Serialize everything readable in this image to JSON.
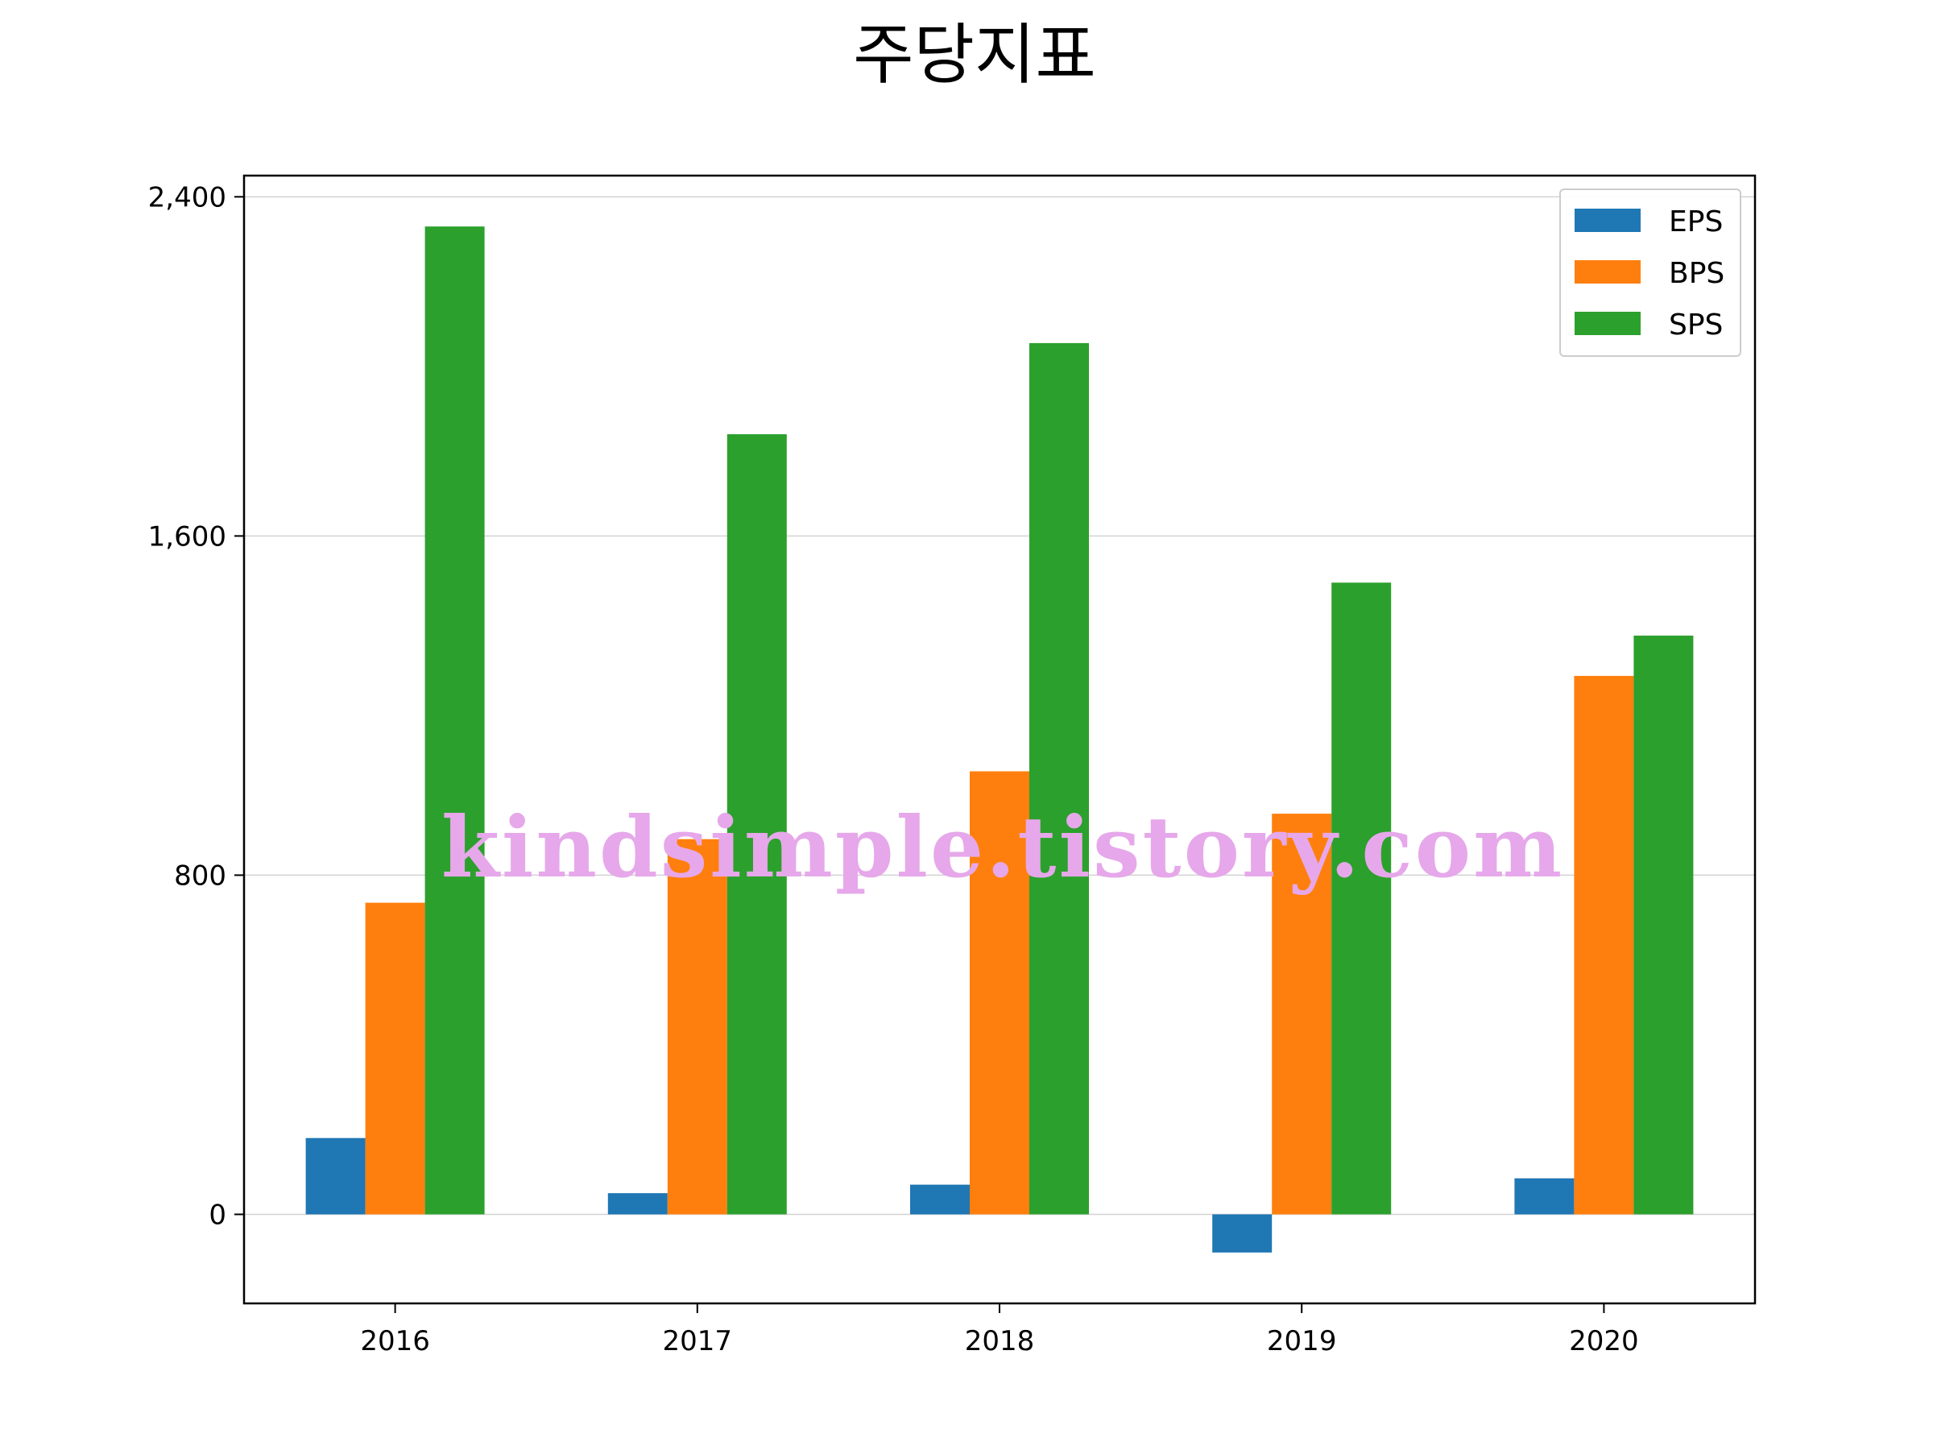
{
  "chart_data": {
    "type": "bar",
    "title": "주당지표",
    "xlabel": "",
    "ylabel": "",
    "categories": [
      "2016",
      "2017",
      "2018",
      "2019",
      "2020"
    ],
    "series": [
      {
        "name": "EPS",
        "color": "#1f77b4",
        "values": [
          180,
          50,
          70,
          -90,
          85
        ]
      },
      {
        "name": "BPS",
        "color": "#ff7f0e",
        "values": [
          735,
          885,
          1045,
          945,
          1270
        ]
      },
      {
        "name": "SPS",
        "color": "#2ca02c",
        "values": [
          2330,
          1840,
          2055,
          1490,
          1365
        ]
      }
    ],
    "ylim": [
      -210,
      2450
    ],
    "yticks": [
      0,
      800,
      1600,
      2400
    ],
    "ytick_labels": [
      "0",
      "800",
      "1,600",
      "2,400"
    ],
    "grid": {
      "y": true,
      "x": false
    },
    "legend": "top-right"
  },
  "watermark": {
    "text": "kindsimple.tistory.com",
    "color": "#e6a8ea"
  }
}
